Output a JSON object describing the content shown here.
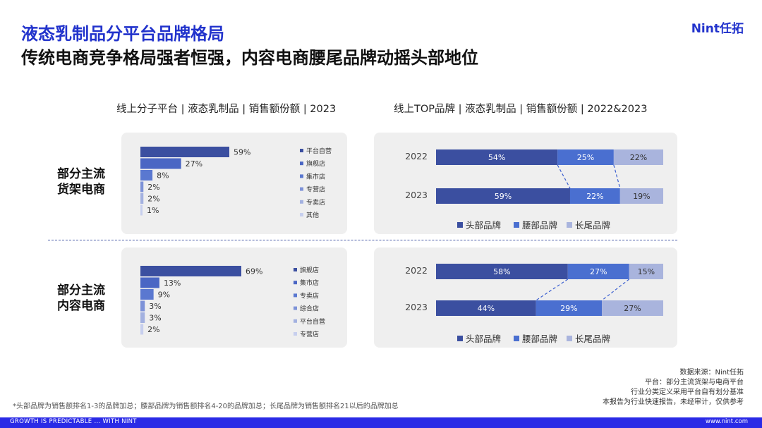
{
  "header": {
    "title": "液态乳制品分平台品牌格局",
    "subtitle": "传统电商竞争格局强者恒强，内容电商腰尾品牌动摇头部地位",
    "logo": "Nint任拓"
  },
  "left_heading": "线上分子平台 | 液态乳制品 | 销售额份额 | 2023",
  "right_heading": "线上TOP品牌 | 液态乳制品 | 销售额份额 | 2022&2023",
  "row_labels": {
    "shelf": [
      "部分主流",
      "货架电商"
    ],
    "content": [
      "部分主流",
      "内容电商"
    ]
  },
  "colors": {
    "head": "#3b4fa0",
    "waist": "#4a6fd0",
    "tail": "#a9b4dd",
    "platform_shades": [
      "#3b4fa0",
      "#4a66c4",
      "#5a78d0",
      "#7d92d8",
      "#a3b1e0",
      "#c7cfee"
    ]
  },
  "chart_data": [
    {
      "type": "bar",
      "orientation": "horizontal",
      "categories": [
        "平台自营",
        "旗舰店",
        "集市店",
        "专营店",
        "专卖店",
        "其他"
      ],
      "values": [
        59,
        27,
        8,
        2,
        2,
        1
      ],
      "labels": [
        "59%",
        "27%",
        "8%",
        "2%",
        "2%",
        "1%"
      ]
    },
    {
      "type": "bar",
      "orientation": "horizontal",
      "categories": [
        "旗舰店",
        "集市店",
        "专卖店",
        "综合店",
        "平台自营",
        "专营店"
      ],
      "values": [
        69,
        13,
        9,
        3,
        3,
        2
      ],
      "labels": [
        "69%",
        "13%",
        "9%",
        "3%",
        "3%",
        "2%"
      ]
    },
    {
      "type": "bar",
      "stacked": true,
      "categories": [
        "2022",
        "2023"
      ],
      "series": [
        {
          "name": "头部品牌",
          "values": [
            54,
            59
          ],
          "labels": [
            "54%",
            "59%"
          ]
        },
        {
          "name": "腰部品牌",
          "values": [
            25,
            22
          ],
          "labels": [
            "25%",
            "22%"
          ]
        },
        {
          "name": "长尾品牌",
          "values": [
            22,
            19
          ],
          "labels": [
            "22%",
            "19%"
          ]
        }
      ]
    },
    {
      "type": "bar",
      "stacked": true,
      "categories": [
        "2022",
        "2023"
      ],
      "series": [
        {
          "name": "头部品牌",
          "values": [
            58,
            44
          ],
          "labels": [
            "58%",
            "44%"
          ]
        },
        {
          "name": "腰部品牌",
          "values": [
            27,
            29
          ],
          "labels": [
            "27%",
            "29%"
          ]
        },
        {
          "name": "长尾品牌",
          "values": [
            15,
            27
          ],
          "labels": [
            "15%",
            "27%"
          ]
        }
      ]
    }
  ],
  "source_notes": [
    "数据来源：Nint任拓",
    "平台：部分主流货架与电商平台",
    "行业分类定义采用平台自有划分基准",
    "本报告为行业快速报告，未经审计，仅供参考"
  ],
  "footnote": "*头部品牌为销售额排名1-3的品牌加总；腰部品牌为销售额排名4-20的品牌加总；长尾品牌为销售额排名21以后的品牌加总",
  "footer": {
    "left": "GROWTH IS PREDICTABLE ... WITH NINT",
    "right": "www.nint.com"
  }
}
